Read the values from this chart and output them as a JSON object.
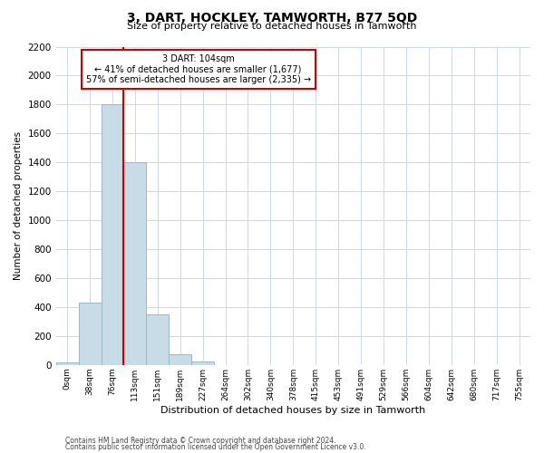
{
  "title": "3, DART, HOCKLEY, TAMWORTH, B77 5QD",
  "subtitle": "Size of property relative to detached houses in Tamworth",
  "xlabel": "Distribution of detached houses by size in Tamworth",
  "ylabel": "Number of detached properties",
  "bar_labels": [
    "0sqm",
    "38sqm",
    "76sqm",
    "113sqm",
    "151sqm",
    "189sqm",
    "227sqm",
    "264sqm",
    "302sqm",
    "340sqm",
    "378sqm",
    "415sqm",
    "453sqm",
    "491sqm",
    "529sqm",
    "566sqm",
    "604sqm",
    "642sqm",
    "680sqm",
    "717sqm",
    "755sqm"
  ],
  "bar_values": [
    15,
    430,
    1800,
    1400,
    350,
    75,
    25,
    0,
    0,
    0,
    0,
    0,
    0,
    0,
    0,
    0,
    0,
    0,
    0,
    0,
    0
  ],
  "bar_color": "#c8dce8",
  "bar_edge_color": "#9ab8cc",
  "vline_x": 3.0,
  "vline_color": "#cc0000",
  "annotation_title": "3 DART: 104sqm",
  "annotation_line1": "← 41% of detached houses are smaller (1,677)",
  "annotation_line2": "57% of semi-detached houses are larger (2,335) →",
  "annotation_box_color": "#ffffff",
  "annotation_box_edge": "#cc0000",
  "ylim": [
    0,
    2200
  ],
  "yticks": [
    0,
    200,
    400,
    600,
    800,
    1000,
    1200,
    1400,
    1600,
    1800,
    2000,
    2200
  ],
  "footnote1": "Contains HM Land Registry data © Crown copyright and database right 2024.",
  "footnote2": "Contains public sector information licensed under the Open Government Licence v3.0.",
  "bg_color": "#ffffff",
  "grid_color": "#ccd8e4"
}
